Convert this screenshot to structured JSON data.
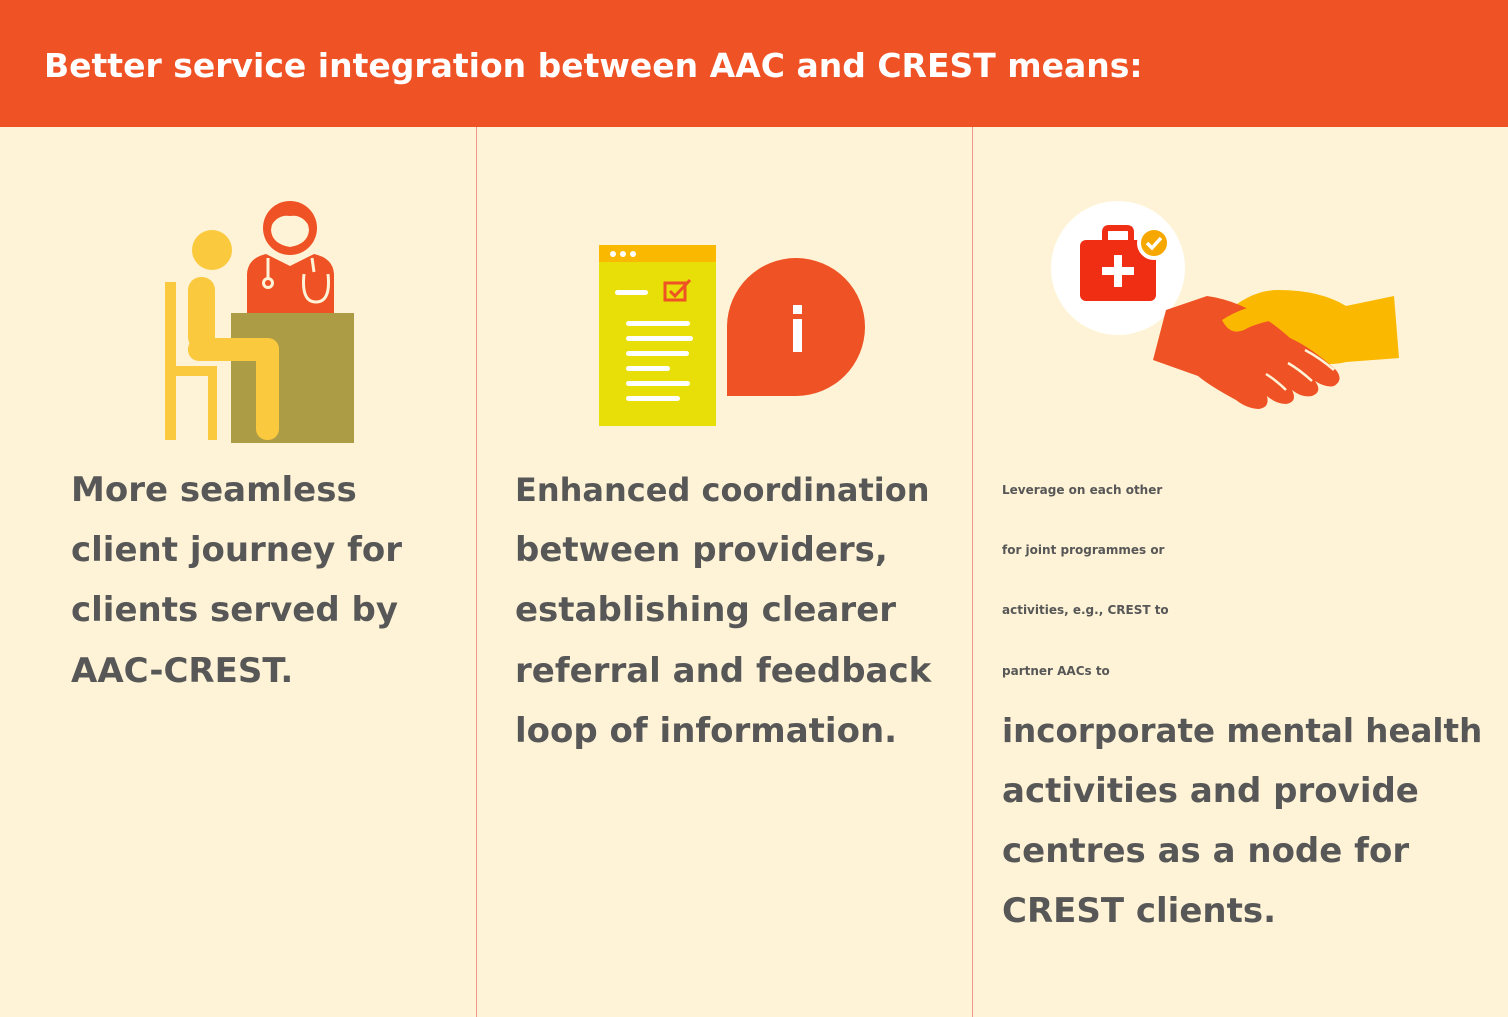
{
  "header": {
    "title": "Better service integration between AAC and CREST means:"
  },
  "columns": [
    {
      "icon": "doctor-consultation-icon",
      "lines": [
        "More seamless",
        "client journey for",
        "clients served by",
        "AAC-CREST."
      ]
    },
    {
      "icon": "document-info-icon",
      "lines": [
        "Enhanced coordination",
        "between providers,",
        "establishing clearer",
        "referral and feedback",
        "loop of information."
      ]
    },
    {
      "icon": "handshake-medical-kit-icon",
      "lines": [
        "Leverage on each other",
        "for joint programmes or",
        "activities, e.g., CREST to",
        "partner AACs to",
        "incorporate mental health",
        "activities and provide",
        "centres as a node for",
        "CREST clients."
      ]
    }
  ],
  "colors": {
    "header_orange": "#ef5225",
    "panel_cream": "#fef3d6",
    "text_gray": "#575757",
    "divider": "#ec9a87",
    "accent_yellow": "#fbc93d",
    "accent_olive": "#ac9c46",
    "accent_lime": "#e7df07"
  }
}
